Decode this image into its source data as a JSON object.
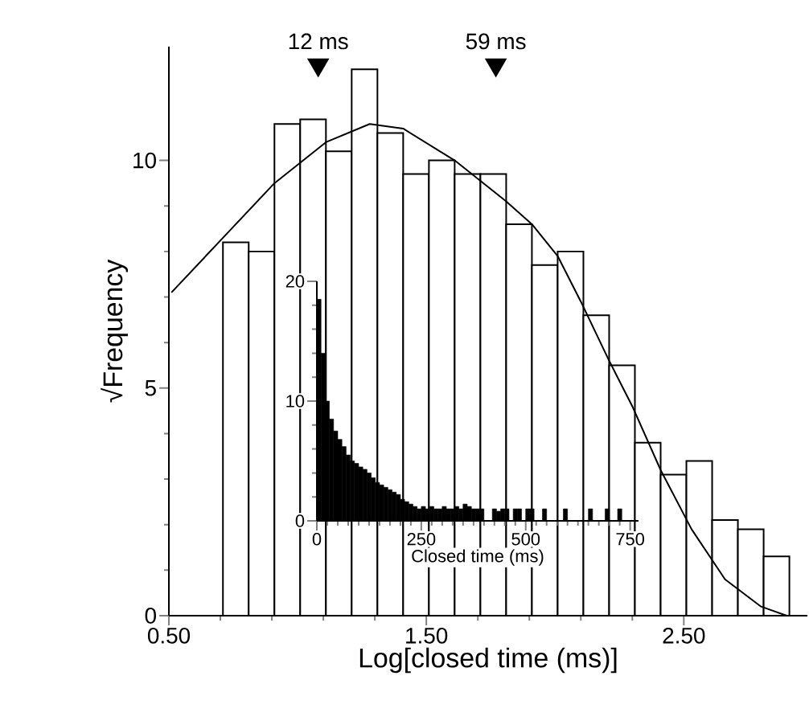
{
  "chart_data": [
    {
      "type": "histogram",
      "xlabel": "Log[closed time (ms)]",
      "ylabel": "√Frequency",
      "color": "#000000",
      "bins": [
        0.71,
        0.81,
        0.91,
        1.01,
        1.11,
        1.21,
        1.31,
        1.41,
        1.51,
        1.61,
        1.71,
        1.81,
        1.91,
        2.01,
        2.11,
        2.21,
        2.31,
        2.41,
        2.51,
        2.61,
        2.71,
        2.81,
        2.91
      ],
      "values": [
        8.2,
        8.0,
        10.8,
        10.9,
        10.2,
        12.0,
        10.6,
        9.7,
        10.0,
        9.7,
        9.7,
        8.6,
        7.7,
        8.0,
        6.6,
        5.5,
        3.8,
        3.1,
        3.4,
        2.1,
        1.9,
        1.3
      ],
      "series": [
        {
          "type": "line",
          "color": "#000000",
          "x": [
            0.51,
            0.71,
            0.91,
            1.11,
            1.28,
            1.41,
            1.61,
            1.81,
            1.91,
            2.01,
            2.1,
            2.21,
            2.3,
            2.41,
            2.53,
            2.66,
            2.8,
            2.9
          ],
          "values": [
            7.1,
            8.3,
            9.5,
            10.4,
            10.8,
            10.7,
            10.0,
            9.1,
            8.6,
            7.9,
            6.9,
            5.6,
            4.6,
            3.2,
            1.9,
            0.8,
            0.2,
            0.0
          ]
        }
      ],
      "annotations": [
        {
          "text": "12 ms",
          "x": 1.08,
          "y": 12.1
        },
        {
          "text": "59 ms",
          "x": 1.77,
          "y": 12.1
        }
      ],
      "xlim": [
        0.5,
        2.98
      ],
      "ylim": [
        0,
        12.5
      ],
      "xticks": [
        {
          "value": 0.5,
          "label": "0.50"
        },
        {
          "value": 1.5,
          "label": "1.50"
        },
        {
          "value": 2.5,
          "label": "2.50"
        }
      ],
      "yticks": [
        0,
        5,
        10
      ]
    },
    {
      "type": "histogram",
      "xlabel": "Closed time (ms)",
      "color": "#000000",
      "bins": [
        0,
        10,
        20,
        30,
        40,
        50,
        60,
        70,
        80,
        90,
        100,
        110,
        120,
        130,
        140,
        150,
        160,
        170,
        180,
        190,
        200,
        210,
        220,
        230,
        240,
        250,
        260,
        270,
        280,
        290,
        300,
        310,
        320,
        330,
        340,
        350,
        360,
        370,
        380,
        390,
        400,
        410,
        420,
        430,
        440,
        450,
        460,
        470,
        480,
        490,
        500,
        510,
        520,
        530,
        540,
        550,
        560,
        570,
        580,
        590,
        600,
        610,
        620,
        630,
        640,
        650,
        660,
        670,
        680,
        690,
        700,
        710,
        720,
        730
      ],
      "values": [
        18.5,
        14,
        10,
        8.5,
        7.5,
        6.8,
        6.2,
        5.5,
        5,
        4.8,
        4.5,
        4.3,
        4,
        3.6,
        3.2,
        3,
        2.8,
        2.6,
        2.4,
        2.2,
        1.8,
        1.6,
        1.4,
        1.2,
        1,
        1.2,
        1,
        1.2,
        1,
        1,
        1.2,
        1,
        1,
        1.2,
        1,
        1.4,
        1.2,
        1,
        1,
        1,
        0,
        0,
        1,
        0.8,
        1,
        1,
        0,
        1,
        1,
        0,
        1,
        1,
        0,
        0,
        1,
        0,
        0,
        0,
        0,
        1,
        0,
        0,
        0,
        0,
        0,
        1,
        0,
        0,
        0,
        1,
        0,
        0,
        1
      ],
      "xlim": [
        0,
        770
      ],
      "ylim": [
        0,
        20
      ],
      "xticks": [
        0,
        250,
        500,
        750
      ],
      "yticks": [
        0,
        10,
        20
      ]
    }
  ]
}
